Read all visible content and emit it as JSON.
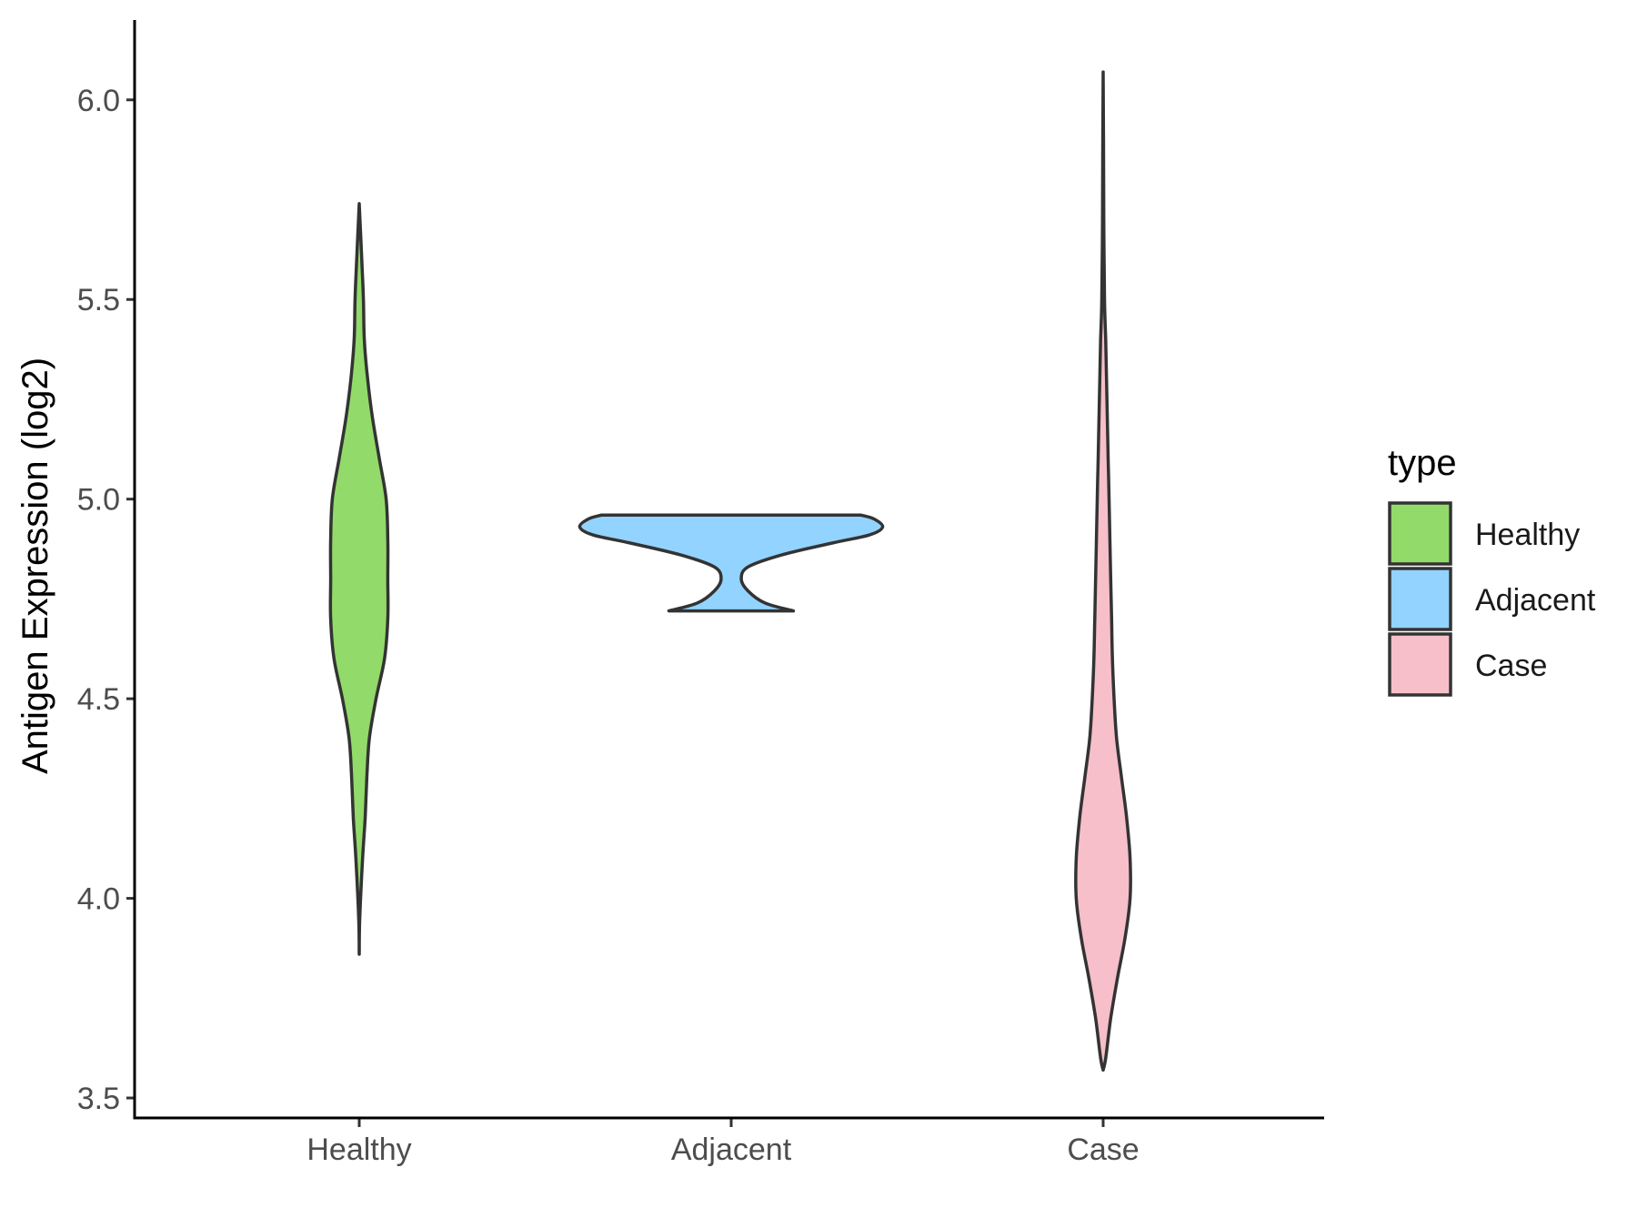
{
  "chart_data": {
    "type": "violin",
    "xlabel": "",
    "ylabel": "Antigen Expression (log2)",
    "ylim": [
      3.45,
      6.2
    ],
    "yticks": [
      3.5,
      4.0,
      4.5,
      5.0,
      5.5,
      6.0
    ],
    "ytick_labels": [
      "3.5",
      "4.0",
      "4.5",
      "5.0",
      "5.5",
      "6.0"
    ],
    "categories": [
      "Healthy",
      "Adjacent",
      "Case"
    ],
    "grid": false,
    "legend": {
      "title": "type",
      "position": "right",
      "entries": [
        {
          "label": "Healthy",
          "color": "#92DA6A"
        },
        {
          "label": "Adjacent",
          "color": "#93D3FF"
        },
        {
          "label": "Case",
          "color": "#F6BFCA"
        }
      ]
    },
    "series": [
      {
        "category": "Healthy",
        "color": "#92DA6A",
        "min": 3.86,
        "max": 5.74,
        "density_profile": [
          [
            3.86,
            0.0
          ],
          [
            3.95,
            0.003
          ],
          [
            4.1,
            0.02
          ],
          [
            4.2,
            0.035
          ],
          [
            4.3,
            0.045
          ],
          [
            4.4,
            0.06
          ],
          [
            4.5,
            0.1
          ],
          [
            4.6,
            0.15
          ],
          [
            4.7,
            0.17
          ],
          [
            4.8,
            0.17
          ],
          [
            4.9,
            0.17
          ],
          [
            5.0,
            0.16
          ],
          [
            5.1,
            0.12
          ],
          [
            5.2,
            0.08
          ],
          [
            5.3,
            0.05
          ],
          [
            5.4,
            0.03
          ],
          [
            5.5,
            0.025
          ],
          [
            5.6,
            0.015
          ],
          [
            5.74,
            0.0
          ]
        ]
      },
      {
        "category": "Adjacent",
        "color": "#93D3FF",
        "min": 4.72,
        "max": 4.96,
        "density_profile": [
          [
            4.72,
            0.37
          ],
          [
            4.74,
            0.2
          ],
          [
            4.77,
            0.1
          ],
          [
            4.8,
            0.06
          ],
          [
            4.83,
            0.1
          ],
          [
            4.86,
            0.3
          ],
          [
            4.89,
            0.6
          ],
          [
            4.91,
            0.82
          ],
          [
            4.93,
            0.9
          ],
          [
            4.95,
            0.85
          ],
          [
            4.96,
            0.77
          ]
        ]
      },
      {
        "category": "Case",
        "color": "#F6BFCA",
        "min": 3.57,
        "max": 6.07,
        "density_profile": [
          [
            3.57,
            0.0
          ],
          [
            3.6,
            0.015
          ],
          [
            3.7,
            0.045
          ],
          [
            3.8,
            0.085
          ],
          [
            3.9,
            0.13
          ],
          [
            4.0,
            0.16
          ],
          [
            4.1,
            0.16
          ],
          [
            4.2,
            0.14
          ],
          [
            4.3,
            0.11
          ],
          [
            4.4,
            0.08
          ],
          [
            4.5,
            0.065
          ],
          [
            4.6,
            0.055
          ],
          [
            4.7,
            0.05
          ],
          [
            4.8,
            0.045
          ],
          [
            4.9,
            0.04
          ],
          [
            5.0,
            0.035
          ],
          [
            5.1,
            0.03
          ],
          [
            5.2,
            0.025
          ],
          [
            5.3,
            0.02
          ],
          [
            5.4,
            0.015
          ],
          [
            5.5,
            0.008
          ],
          [
            5.7,
            0.004
          ],
          [
            5.9,
            0.002
          ],
          [
            6.07,
            0.0
          ]
        ]
      }
    ]
  }
}
